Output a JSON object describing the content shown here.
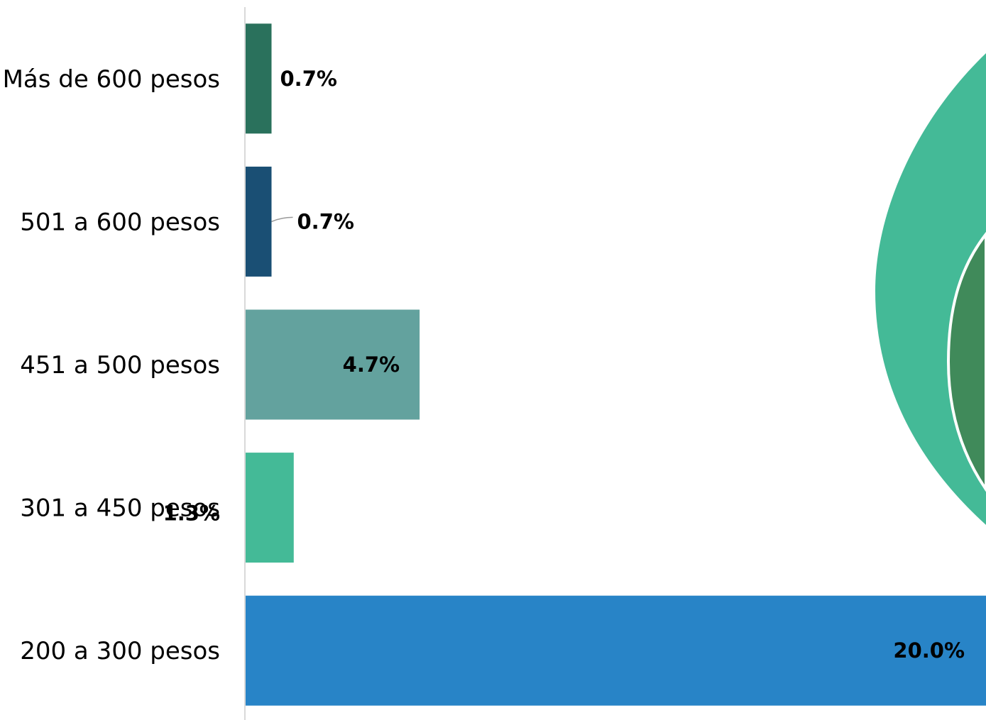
{
  "chart_data": [
    {
      "type": "bar",
      "orientation": "horizontal",
      "categories": [
        "Más de 600 pesos",
        "501 a 600 pesos",
        "451 a 500 pesos",
        "301 a 450 pesos",
        "200 a 300 pesos"
      ],
      "values": [
        0.7,
        0.7,
        4.7,
        1.3,
        20.0
      ],
      "value_labels": [
        "0.7%",
        "0.7%",
        "4.7%",
        "1.3%",
        "20.0%"
      ],
      "bar_colors": [
        "#2a715c",
        "#1a4f74",
        "#63a29e",
        "#44ba97",
        "#2884c7"
      ],
      "xlim": [
        0,
        20
      ],
      "grid": false,
      "title": "",
      "xlabel": "",
      "ylabel": ""
    },
    {
      "type": "pie",
      "note_visible": "partially cropped at right edge",
      "colors": [
        "#44ba97",
        "#408a5a"
      ]
    }
  ]
}
